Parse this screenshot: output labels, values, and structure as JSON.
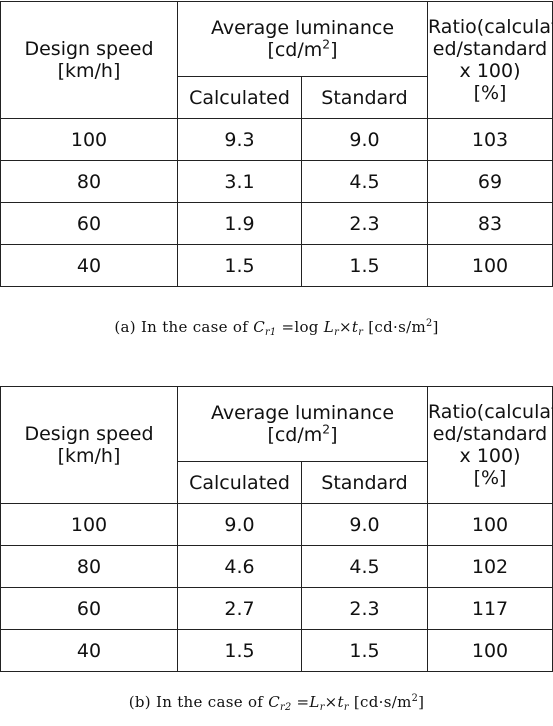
{
  "tables": [
    {
      "headers": {
        "design_speed": "Design speed",
        "design_speed_unit": "[km/h]",
        "avg_lum": "Average luminance",
        "avg_lum_unit_pre": "[cd/m",
        "avg_lum_unit_sup": "2",
        "avg_lum_unit_post": "]",
        "ratio_l1": "Ratio(calculat",
        "ratio_l2": "ed/standard",
        "ratio_l3": "x 100)",
        "ratio_l4": "[%]",
        "calculated": "Calculated",
        "standard": "Standard"
      },
      "rows": [
        {
          "speed": "100",
          "calc": "9.3",
          "std": "9.0",
          "ratio": "103"
        },
        {
          "speed": "80",
          "calc": "3.1",
          "std": "4.5",
          "ratio": "69"
        },
        {
          "speed": "60",
          "calc": "1.9",
          "std": "2.3",
          "ratio": "83"
        },
        {
          "speed": "40",
          "calc": "1.5",
          "std": "1.5",
          "ratio": "100"
        }
      ],
      "caption": {
        "prefix": "(a)  In  the  case  of",
        "var": "C",
        "var_sub": "r1",
        "eq": "=log",
        "l": "L",
        "l_sub": "r",
        "times": "×",
        "t": "t",
        "t_sub": "r",
        "unit_pre": "[cd·s/m",
        "unit_sup": "2",
        "unit_post": "]"
      }
    },
    {
      "headers": {
        "design_speed": "Design speed",
        "design_speed_unit": "[km/h]",
        "avg_lum": "Average luminance",
        "avg_lum_unit_pre": "[cd/m",
        "avg_lum_unit_sup": "2",
        "avg_lum_unit_post": "]",
        "ratio_l1": "Ratio(calculat",
        "ratio_l2": "ed/standard",
        "ratio_l3": "x 100)",
        "ratio_l4": "[%]",
        "calculated": "Calculated",
        "standard": "Standard"
      },
      "rows": [
        {
          "speed": "100",
          "calc": "9.0",
          "std": "9.0",
          "ratio": "100"
        },
        {
          "speed": "80",
          "calc": "4.6",
          "std": "4.5",
          "ratio": "102"
        },
        {
          "speed": "60",
          "calc": "2.7",
          "std": "2.3",
          "ratio": "117"
        },
        {
          "speed": "40",
          "calc": "1.5",
          "std": "1.5",
          "ratio": "100"
        }
      ],
      "caption": {
        "prefix": "(b)  In  the  case  of",
        "var": "C",
        "var_sub": "r2",
        "eq": "=",
        "l": "L",
        "l_sub": "r",
        "times": "×",
        "t": "t",
        "t_sub": "r",
        "unit_pre": "[cd·s/m",
        "unit_sup": "2",
        "unit_post": "]"
      }
    }
  ]
}
